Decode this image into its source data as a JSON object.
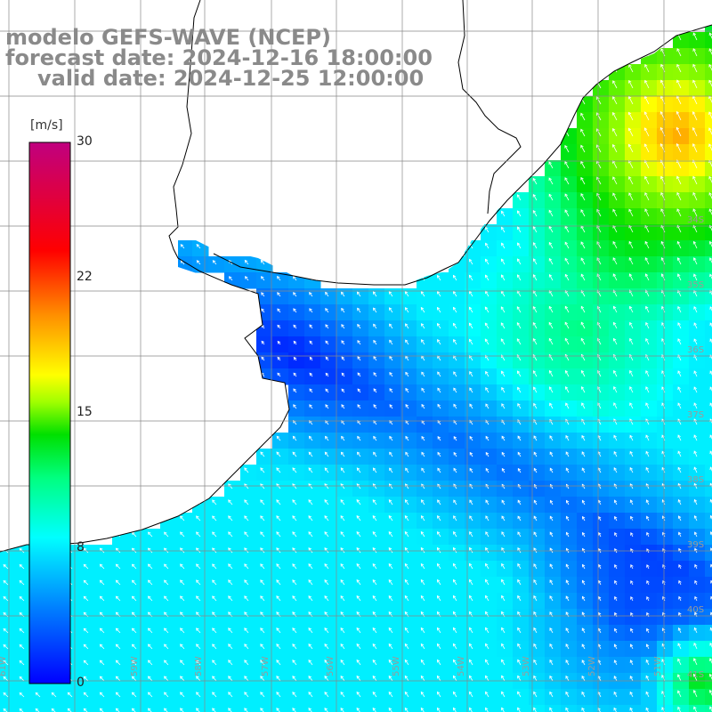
{
  "title": {
    "line1": "modelo GEFS-WAVE (NCEP)",
    "line2": "forecast date: 2024-12-16 18:00:00",
    "line3": "valid date: 2024-12-25 12:00:00"
  },
  "colorbar": {
    "unit": "[m/s]",
    "ticks": [
      "30",
      "22",
      "15",
      "8",
      "0"
    ],
    "tick_values": [
      30,
      22,
      15,
      8,
      0
    ],
    "min": 0,
    "max": 30,
    "colors": [
      "#0000ff",
      "#00aaff",
      "#00ffff",
      "#00ff00",
      "#ffff00",
      "#ff8000",
      "#ff0000",
      "#c0007f"
    ]
  },
  "map": {
    "lat_labels": [
      "34S",
      "35S",
      "36S",
      "37S",
      "38S",
      "39S",
      "40S",
      "41S"
    ],
    "lon_labels": [
      "61W",
      "60W",
      "59W",
      "58W",
      "57W",
      "56W",
      "55W",
      "54W",
      "53W",
      "52W",
      "51W"
    ],
    "land_color": "#ffffff",
    "grid_color": "#888888"
  }
}
